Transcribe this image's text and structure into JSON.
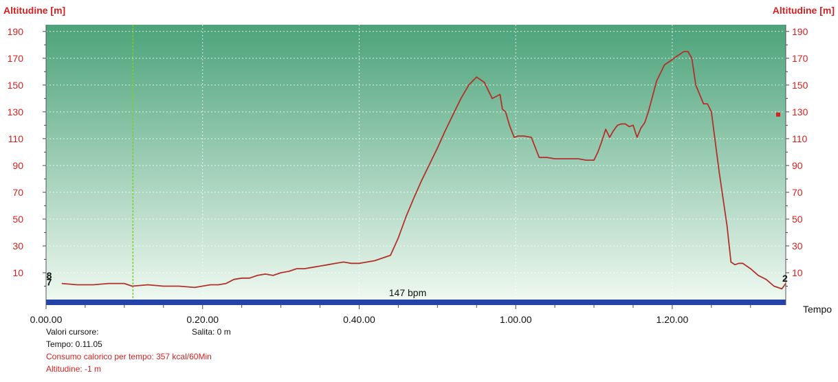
{
  "colors": {
    "line": "#b2302a",
    "axis_text": "#d42020",
    "bg_top": "#4ca37a",
    "bg_bottom": "#eef8f0",
    "bottom_bar": "#2443a8",
    "cursor": "#7ccf2a",
    "grid": "#ffffff"
  },
  "chart_data": {
    "type": "area",
    "ylabel_left": "Altitudine [m]",
    "ylabel_right": "Altitudine [m]",
    "xlabel": "Tempo",
    "ylim": [
      -10,
      195
    ],
    "y_ticks": [
      10,
      30,
      50,
      70,
      90,
      110,
      130,
      150,
      170,
      190
    ],
    "x_ticks": [
      "0.00.00",
      "0.20.00",
      "0.40.00",
      "1.00.00",
      "1.20.00"
    ],
    "x_tick_minutes": [
      0,
      20,
      40,
      60,
      80
    ],
    "xlim_minutes": [
      0,
      94.5
    ],
    "grid": true,
    "series": [
      {
        "x": [
          2,
          4,
          6,
          8,
          10,
          11,
          13,
          15,
          17,
          19,
          21,
          22,
          23,
          24,
          25,
          26,
          27,
          28,
          29,
          30,
          31,
          32,
          33,
          34,
          35,
          36,
          37,
          38,
          39,
          40,
          41,
          42,
          43,
          44,
          45,
          46,
          47,
          48,
          49,
          50,
          51,
          52,
          53,
          54,
          55,
          56,
          57,
          58,
          58.3,
          58.7,
          59.2,
          59.8,
          60.3,
          61,
          62,
          63,
          64,
          65,
          66,
          67,
          68,
          69,
          70,
          70.5,
          71,
          71.5,
          72,
          72.5,
          73,
          73.5,
          74,
          74.5,
          75,
          75.5,
          76,
          76.5,
          77,
          78,
          79,
          80,
          80.7,
          81.5,
          82,
          82.5,
          83,
          84,
          84.5,
          85,
          86,
          87,
          87.5,
          88,
          88.5,
          89,
          90,
          91,
          92,
          93,
          94,
          94.5
        ],
        "y": [
          2,
          1,
          1,
          2,
          2,
          0,
          1,
          0,
          0,
          -1,
          1,
          1,
          2,
          5,
          6,
          6,
          8,
          9,
          8,
          10,
          11,
          13,
          13,
          14,
          15,
          16,
          17,
          18,
          17,
          17,
          18,
          19,
          21,
          23,
          36,
          52,
          66,
          79,
          91,
          103,
          116,
          128,
          140,
          150,
          156,
          152,
          140,
          143,
          132,
          130,
          120,
          111,
          112,
          112,
          111,
          96,
          96,
          95,
          95,
          95,
          95,
          94,
          94,
          100,
          108,
          117,
          111,
          116,
          120,
          121,
          121,
          119,
          120,
          111,
          118,
          122,
          131,
          153,
          165,
          169,
          172,
          175,
          175,
          170,
          150,
          136,
          136,
          130,
          85,
          45,
          18,
          16,
          17,
          17,
          13,
          8,
          5,
          0,
          -2,
          2
        ]
      }
    ],
    "annotations": [
      {
        "text": "147 bpm"
      },
      {
        "text": "8",
        "minute": 0.4,
        "y": 8
      },
      {
        "text": "7",
        "minute": 0.4,
        "y": 3
      },
      {
        "text": "2",
        "minute": 94.4,
        "y": 6
      }
    ],
    "cursor_minute": 11.1,
    "marker_y": 128
  },
  "info": {
    "cursor_values_label": "Valori cursore:",
    "climb": "Salita: 0 m",
    "time": "Tempo: 0.11.05",
    "calories": "Consumo calorico per tempo: 357 kcal/60Min",
    "altitude": "Altitudine: -1 m"
  }
}
